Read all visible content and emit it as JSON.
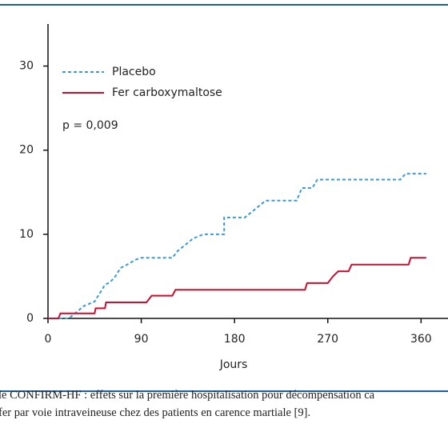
{
  "chart_data": {
    "type": "line",
    "x_label": "Jours",
    "annotation": "p = 0,009",
    "xlim": [
      0,
      386
    ],
    "xticks": [
      0,
      90,
      180,
      270,
      360
    ],
    "ylim": [
      0,
      35
    ],
    "yticks": [
      0,
      10,
      20,
      30
    ],
    "series": [
      {
        "name": "Placebo",
        "color": "#3a9ad9",
        "dashed": true,
        "x": [
          0,
          20,
          30,
          35,
          45,
          50,
          55,
          60,
          65,
          70,
          75,
          85,
          90,
          120,
          125,
          130,
          135,
          140,
          150,
          170,
          170,
          190,
          200,
          210,
          240,
          245,
          255,
          260,
          340,
          345,
          365
        ],
        "values": [
          0,
          0,
          1,
          1.5,
          2,
          3,
          4,
          4.3,
          5,
          6,
          6.3,
          7,
          7.2,
          7.2,
          8,
          8.5,
          9,
          9.5,
          10,
          10,
          12,
          12,
          13,
          14,
          14,
          15.5,
          15.5,
          16.5,
          16.5,
          17.2,
          17.2
        ]
      },
      {
        "name": "Fer carboxymaltose",
        "color": "#c8102e",
        "dashed": false,
        "x": [
          0,
          10,
          12,
          45,
          46,
          55,
          56,
          95,
          100,
          120,
          123,
          248,
          250,
          270,
          275,
          280,
          290,
          293,
          348,
          350,
          365
        ],
        "values": [
          0,
          0,
          0.6,
          0.6,
          1.2,
          1.2,
          1.9,
          1.9,
          2.7,
          2.7,
          3.4,
          3.4,
          4.2,
          4.2,
          5,
          5.6,
          5.6,
          6.4,
          6.4,
          7.2,
          7.2
        ]
      }
    ]
  },
  "caption": [
    "le CONFIRM-HF : effets sur la première hospitalisation pour décompensation ca",
    "fer par voie intraveineuse chez des patients en carence martiale [9]."
  ]
}
